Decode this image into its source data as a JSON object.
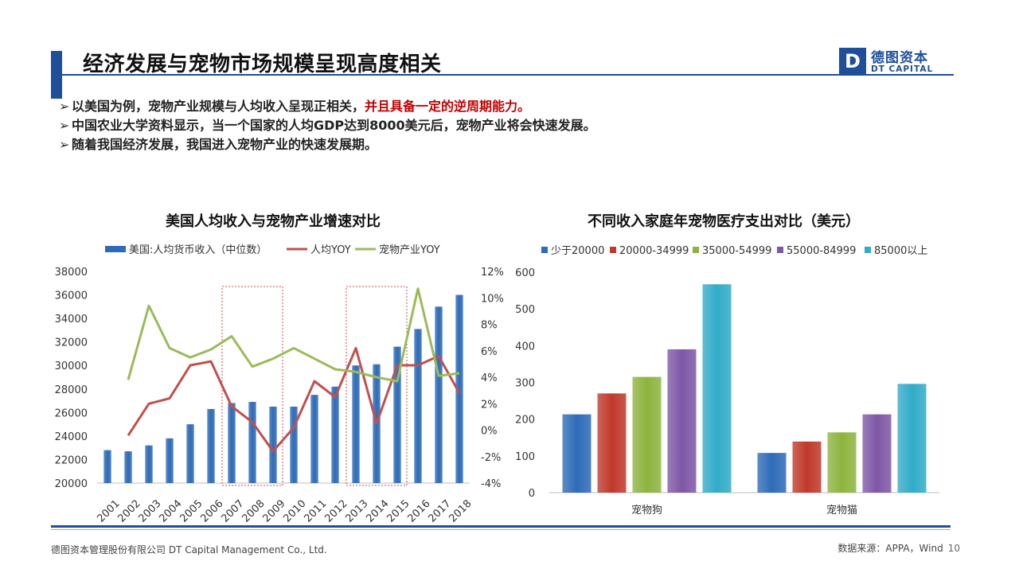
{
  "header": {
    "title": "经济发展与宠物市场规模呈现高度相关",
    "logo_cn": "德图资本",
    "logo_en": "DT CAPITAL",
    "logo_glyph": "D"
  },
  "bullets": [
    {
      "arrow": "➢",
      "text": "以美国为例，宠物产业规模与人均收入呈现正相关，",
      "highlight": "并且具备一定的逆周期能力。"
    },
    {
      "arrow": "➢",
      "text": "中国农业大学资料显示，当一个国家的人均GDP达到8000美元后，宠物产业将会快速发展。",
      "highlight": ""
    },
    {
      "arrow": "➢",
      "text": "随着我国经济发展，我国进入宠物产业的快速发展期。",
      "highlight": ""
    }
  ],
  "chart_titles": {
    "left": "美国人均收入与宠物产业增速对比",
    "right": "不同收入家庭年宠物医疗支出对比（美元）"
  },
  "footer": {
    "company": "德图资本管理股份有限公司  DT Capital Management  Co., Ltd.",
    "source": "数据来源：APPA，Wind",
    "page": "10"
  },
  "colors": {
    "brand": "#1f4e9b",
    "highlight_red": "#c00000"
  },
  "chart_data": [
    {
      "type": "bar+line",
      "title": "美国人均收入与宠物产业增速对比",
      "categories": [
        "2001",
        "2002",
        "2003",
        "2004",
        "2005",
        "2006",
        "2007",
        "2008",
        "2009",
        "2010",
        "2011",
        "2012",
        "2013",
        "2014",
        "2015",
        "2016",
        "2017",
        "2018"
      ],
      "series": [
        {
          "name": "美国:人均货币收入（中位数）",
          "type": "bar",
          "axis": "left",
          "color": "#2e6bb8",
          "values": [
            22800,
            22700,
            23200,
            23800,
            25000,
            26300,
            26800,
            26900,
            26500,
            26500,
            27500,
            28200,
            30000,
            30100,
            31600,
            33100,
            35000,
            36000
          ]
        },
        {
          "name": "人均YOY",
          "type": "line",
          "axis": "right",
          "color": "#c0504d",
          "values": [
            null,
            -0.4,
            2.0,
            2.4,
            4.9,
            5.2,
            1.8,
            0.6,
            -1.6,
            0.2,
            3.7,
            2.5,
            6.2,
            0.5,
            4.9,
            4.9,
            5.6,
            2.8
          ]
        },
        {
          "name": "宠物产业YOY",
          "type": "line",
          "axis": "right",
          "color": "#9bbb59",
          "values": [
            null,
            3.8,
            9.4,
            6.2,
            5.5,
            6.1,
            7.1,
            4.8,
            5.4,
            6.2,
            5.4,
            4.6,
            4.4,
            4.0,
            3.7,
            10.7,
            4.1,
            4.3
          ]
        }
      ],
      "ylim_left": [
        20000,
        38000
      ],
      "yticks_left": [
        "20000",
        "22000",
        "24000",
        "26000",
        "28000",
        "30000",
        "32000",
        "34000",
        "36000",
        "38000"
      ],
      "ylim_right": [
        -4,
        12
      ],
      "yticks_right": [
        "-4%",
        "-2%",
        "0%",
        "2%",
        "4%",
        "6%",
        "8%",
        "10%",
        "12%"
      ],
      "highlight_ranges": [
        [
          "2007",
          "2009"
        ],
        [
          "2013",
          "2015"
        ]
      ],
      "legend": "top",
      "grid": false
    },
    {
      "type": "bar",
      "title": "不同收入家庭年宠物医疗支出对比（美元）",
      "categories": [
        "宠物狗",
        "宠物猫"
      ],
      "series": [
        {
          "name": "少于20000",
          "color": "#2e6bb8",
          "values": [
            213,
            108
          ]
        },
        {
          "name": "20000-34999",
          "color": "#c0392b",
          "values": [
            270,
            139
          ]
        },
        {
          "name": "35000-54999",
          "color": "#8db43e",
          "values": [
            315,
            164
          ]
        },
        {
          "name": "55000-84999",
          "color": "#7e57a6",
          "values": [
            390,
            213
          ]
        },
        {
          "name": "85000以上",
          "color": "#31acc8",
          "values": [
            567,
            296
          ]
        }
      ],
      "ylim": [
        0,
        600
      ],
      "yticks": [
        "0",
        "100",
        "200",
        "300",
        "400",
        "500",
        "600"
      ],
      "legend": "top",
      "grid": false
    }
  ]
}
